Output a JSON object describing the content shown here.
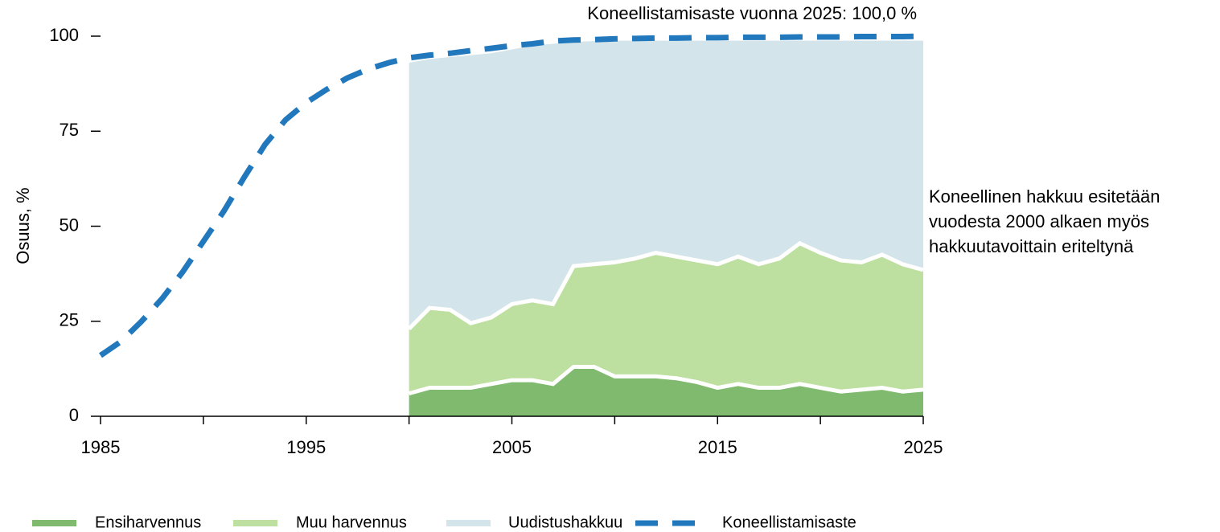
{
  "chart_data": {
    "type": "stacked_area_line",
    "annotation": "Koneellistamisaste vuonna 2025:  100,0 %",
    "side_note": [
      "Koneellinen hakkuu esitetään",
      "vuodesta 2000 alkaen myös",
      "hakkuutavoittain eriteltynä"
    ],
    "y_label": "Osuus, %",
    "xlim": [
      1985,
      2025
    ],
    "xticks": [
      1985,
      1995,
      2005,
      2015,
      2025
    ],
    "xminorticks": [
      1990,
      2000,
      2010,
      2020
    ],
    "ylim": [
      0,
      100
    ],
    "yticks": [
      0,
      25,
      50,
      75,
      100
    ],
    "series": [
      {
        "name": "Ensiharvennus",
        "color": "#7fba6e",
        "kind": "area",
        "x": [
          2000,
          2001,
          2002,
          2003,
          2004,
          2005,
          2006,
          2007,
          2008,
          2009,
          2010,
          2011,
          2012,
          2013,
          2014,
          2015,
          2016,
          2017,
          2018,
          2019,
          2020,
          2021,
          2022,
          2023,
          2024,
          2025
        ],
        "values": [
          6,
          7.5,
          7.5,
          7.5,
          8.5,
          9.5,
          9.5,
          8.5,
          13,
          13,
          10.5,
          10.5,
          10.5,
          10,
          9,
          7.5,
          8.5,
          7.5,
          7.5,
          8.5,
          7.5,
          6.5,
          7,
          7.5,
          6.5,
          7
        ]
      },
      {
        "name": "Muu harvennus",
        "color": "#bddf9f",
        "kind": "area",
        "x": [
          2000,
          2001,
          2002,
          2003,
          2004,
          2005,
          2006,
          2007,
          2008,
          2009,
          2010,
          2011,
          2012,
          2013,
          2014,
          2015,
          2016,
          2017,
          2018,
          2019,
          2020,
          2021,
          2022,
          2023,
          2024,
          2025
        ],
        "values": [
          17,
          21,
          20.5,
          17,
          17.5,
          20,
          21,
          21,
          26.5,
          27,
          30,
          31,
          32.5,
          32,
          32,
          32.5,
          33.5,
          32.5,
          34,
          37,
          35.5,
          34.5,
          33.5,
          35,
          33.5,
          31.5
        ]
      },
      {
        "name": "Uudistushakkuu",
        "color": "#d3e4ea",
        "kind": "area",
        "x": [
          2000,
          2001,
          2002,
          2003,
          2004,
          2005,
          2006,
          2007,
          2008,
          2009,
          2010,
          2011,
          2012,
          2013,
          2014,
          2015,
          2016,
          2017,
          2018,
          2019,
          2020,
          2021,
          2022,
          2023,
          2024,
          2025
        ],
        "values": [
          70,
          65.5,
          66.5,
          70.5,
          69.5,
          67,
          67,
          68.5,
          59,
          58.7,
          58.3,
          57.3,
          55.8,
          56.8,
          57.8,
          58.8,
          56.8,
          58.8,
          57.3,
          53.3,
          55.8,
          57.8,
          58.3,
          56.3,
          58.8,
          60.3
        ]
      },
      {
        "name": "Koneellistamisaste",
        "color": "#2178bd",
        "kind": "line",
        "x": [
          1985,
          1986,
          1987,
          1988,
          1989,
          1990,
          1991,
          1992,
          1993,
          1994,
          1995,
          1996,
          1997,
          1998,
          1999,
          2000,
          2001,
          2002,
          2003,
          2004,
          2005,
          2006,
          2007,
          2008,
          2009,
          2010,
          2011,
          2012,
          2013,
          2014,
          2015,
          2016,
          2017,
          2018,
          2019,
          2020,
          2021,
          2022,
          2023,
          2024,
          2025
        ],
        "values": [
          16,
          19.7,
          25,
          31,
          38,
          46,
          54,
          63,
          71.5,
          78,
          82.5,
          86,
          89,
          91.3,
          93,
          94.3,
          95,
          95.5,
          96.2,
          96.8,
          97.5,
          98,
          98.7,
          99,
          99.1,
          99.3,
          99.4,
          99.5,
          99.5,
          99.6,
          99.6,
          99.7,
          99.7,
          99.7,
          99.8,
          99.8,
          99.8,
          99.9,
          99.9,
          99.9,
          100
        ]
      }
    ]
  }
}
